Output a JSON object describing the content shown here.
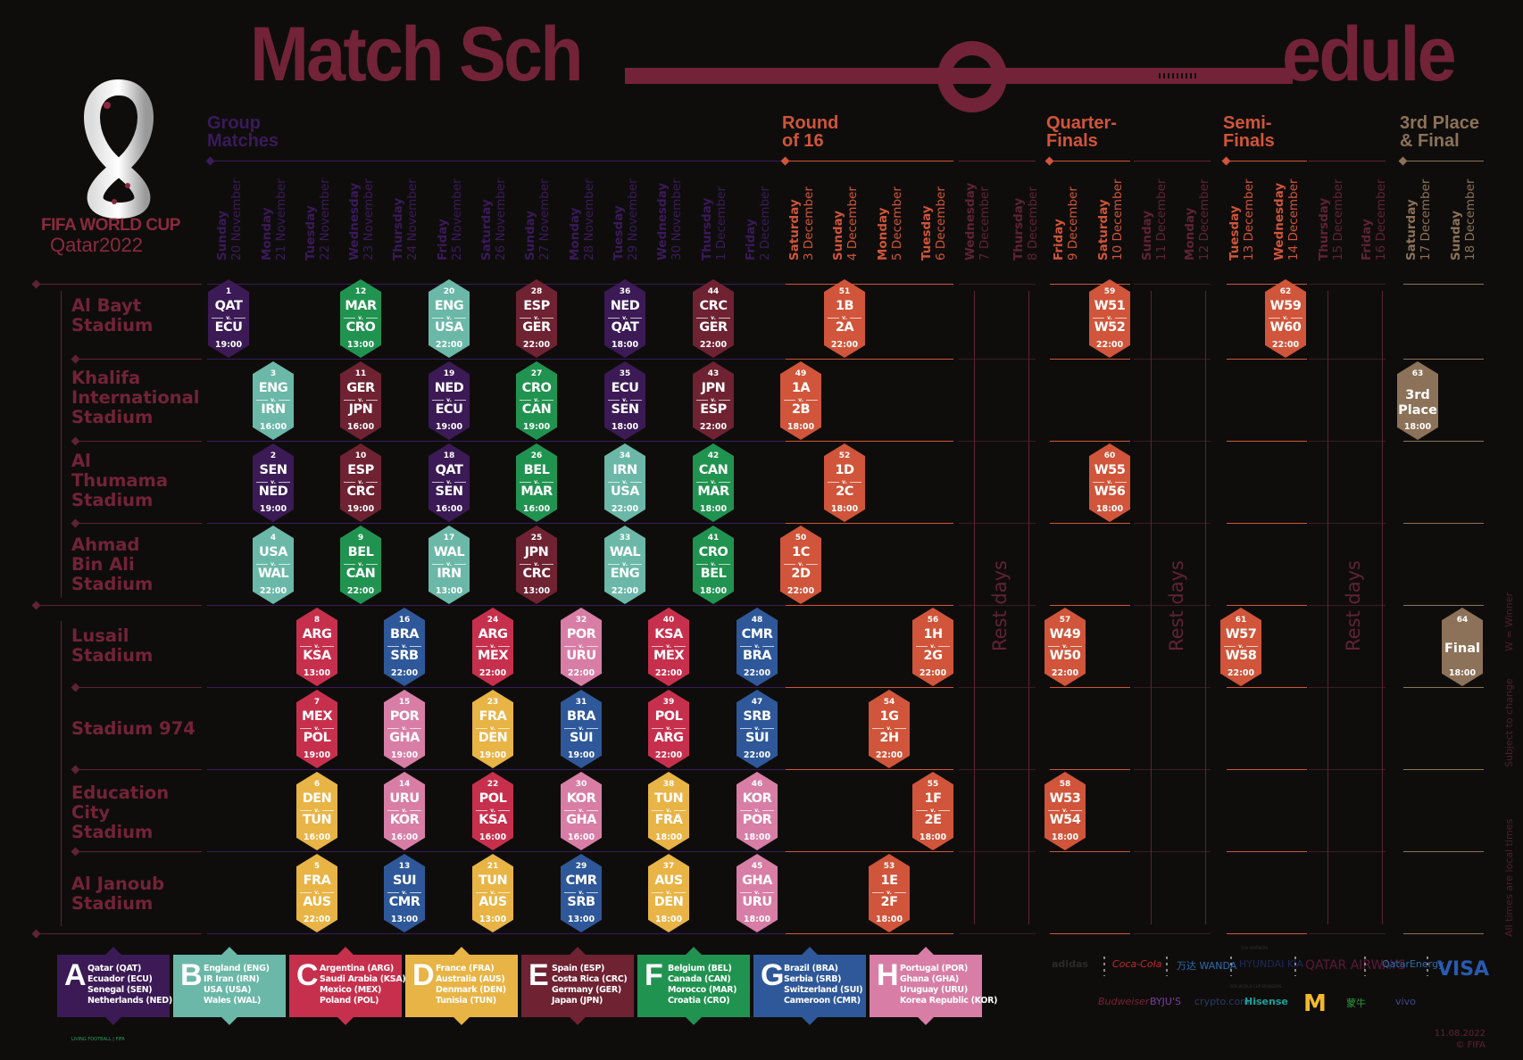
{
  "title": {
    "part1": "Match Sch",
    "part2": "edule"
  },
  "logo": {
    "line1": "FIFA WORLD CUP",
    "line2": "Qatar2022"
  },
  "colors": {
    "bg": "#0f0d0c",
    "title": "#722337",
    "group_stage": "#3a1a5a",
    "knockout": "#d0553a",
    "final": "#8c7258",
    "venue": "#722337",
    "group_A": "#3b1a55",
    "group_B": "#6bb8a8",
    "group_C": "#c7304d",
    "group_D": "#e8b445",
    "group_E": "#6e2232",
    "group_F": "#219350",
    "group_G": "#2e5899",
    "group_H": "#d87ea6"
  },
  "stages": [
    {
      "label": "Group\nMatches",
      "color": "#3a1a5a"
    },
    {
      "label": "Round\nof 16",
      "color": "#d0553a"
    },
    {
      "label": "Quarter-\nFinals",
      "color": "#d0553a"
    },
    {
      "label": "Semi-\nFinals",
      "color": "#d0553a"
    },
    {
      "label": "3rd Place\n& Final",
      "color": "#8c7258"
    }
  ],
  "days": [
    {
      "weekday": "Sunday",
      "date": "20 November",
      "stage": "group"
    },
    {
      "weekday": "Monday",
      "date": "21 November",
      "stage": "group"
    },
    {
      "weekday": "Tuesday",
      "date": "22 November",
      "stage": "group"
    },
    {
      "weekday": "Wednesday",
      "date": "23 November",
      "stage": "group"
    },
    {
      "weekday": "Thursday",
      "date": "24 November",
      "stage": "group"
    },
    {
      "weekday": "Friday",
      "date": "25 November",
      "stage": "group"
    },
    {
      "weekday": "Saturday",
      "date": "26 November",
      "stage": "group"
    },
    {
      "weekday": "Sunday",
      "date": "27 November",
      "stage": "group"
    },
    {
      "weekday": "Monday",
      "date": "28 November",
      "stage": "group"
    },
    {
      "weekday": "Tuesday",
      "date": "29 November",
      "stage": "group"
    },
    {
      "weekday": "Wednesday",
      "date": "30 November",
      "stage": "group"
    },
    {
      "weekday": "Thursday",
      "date": "1 December",
      "stage": "group"
    },
    {
      "weekday": "Friday",
      "date": "2 December",
      "stage": "group"
    },
    {
      "weekday": "Saturday",
      "date": "3 December",
      "stage": "ko"
    },
    {
      "weekday": "Sunday",
      "date": "4 December",
      "stage": "ko"
    },
    {
      "weekday": "Monday",
      "date": "5 December",
      "stage": "ko"
    },
    {
      "weekday": "Tuesday",
      "date": "6 December",
      "stage": "ko"
    },
    {
      "weekday": "Wednesday",
      "date": "7 December",
      "stage": "rest"
    },
    {
      "weekday": "Thursday",
      "date": "8 December",
      "stage": "rest"
    },
    {
      "weekday": "Friday",
      "date": "9 December",
      "stage": "ko"
    },
    {
      "weekday": "Saturday",
      "date": "10 December",
      "stage": "ko"
    },
    {
      "weekday": "Sunday",
      "date": "11 December",
      "stage": "rest"
    },
    {
      "weekday": "Monday",
      "date": "12 December",
      "stage": "rest"
    },
    {
      "weekday": "Tuesday",
      "date": "13 December",
      "stage": "ko"
    },
    {
      "weekday": "Wednesday",
      "date": "14 December",
      "stage": "ko"
    },
    {
      "weekday": "Thursday",
      "date": "15 December",
      "stage": "rest"
    },
    {
      "weekday": "Friday",
      "date": "16 December",
      "stage": "rest"
    },
    {
      "weekday": "Saturday",
      "date": "17 December",
      "stage": "final"
    },
    {
      "weekday": "Sunday",
      "date": "18 December",
      "stage": "final"
    }
  ],
  "venues": [
    "Al Bayt\nStadium",
    "Khalifa\nInternational\nStadium",
    "Al\nThumama\nStadium",
    "Ahmad\nBin Ali\nStadium",
    "Lusail\nStadium",
    "Stadium 974",
    "Education\nCity\nStadium",
    "Al Janoub\nStadium"
  ],
  "rest_label": "Rest days",
  "versus": "v.",
  "matches": [
    {
      "no": "1",
      "home": "QAT",
      "away": "ECU",
      "time": "19:00",
      "venue": 0,
      "day": 0,
      "group": "A"
    },
    {
      "no": "2",
      "home": "SEN",
      "away": "NED",
      "time": "19:00",
      "venue": 2,
      "day": 1,
      "group": "A"
    },
    {
      "no": "3",
      "home": "ENG",
      "away": "IRN",
      "time": "16:00",
      "venue": 1,
      "day": 1,
      "group": "B"
    },
    {
      "no": "4",
      "home": "USA",
      "away": "WAL",
      "time": "22:00",
      "venue": 3,
      "day": 1,
      "group": "B"
    },
    {
      "no": "5",
      "home": "FRA",
      "away": "AUS",
      "time": "22:00",
      "venue": 7,
      "day": 2,
      "group": "D"
    },
    {
      "no": "6",
      "home": "DEN",
      "away": "TUN",
      "time": "16:00",
      "venue": 6,
      "day": 2,
      "group": "D"
    },
    {
      "no": "7",
      "home": "MEX",
      "away": "POL",
      "time": "19:00",
      "venue": 5,
      "day": 2,
      "group": "C"
    },
    {
      "no": "8",
      "home": "ARG",
      "away": "KSA",
      "time": "13:00",
      "venue": 4,
      "day": 2,
      "group": "C"
    },
    {
      "no": "9",
      "home": "BEL",
      "away": "CAN",
      "time": "22:00",
      "venue": 3,
      "day": 3,
      "group": "F"
    },
    {
      "no": "10",
      "home": "ESP",
      "away": "CRC",
      "time": "19:00",
      "venue": 2,
      "day": 3,
      "group": "E"
    },
    {
      "no": "11",
      "home": "GER",
      "away": "JPN",
      "time": "16:00",
      "venue": 1,
      "day": 3,
      "group": "E"
    },
    {
      "no": "12",
      "home": "MAR",
      "away": "CRO",
      "time": "13:00",
      "venue": 0,
      "day": 3,
      "group": "F"
    },
    {
      "no": "13",
      "home": "SUI",
      "away": "CMR",
      "time": "13:00",
      "venue": 7,
      "day": 4,
      "group": "G"
    },
    {
      "no": "14",
      "home": "URU",
      "away": "KOR",
      "time": "16:00",
      "venue": 6,
      "day": 4,
      "group": "H"
    },
    {
      "no": "15",
      "home": "POR",
      "away": "GHA",
      "time": "19:00",
      "venue": 5,
      "day": 4,
      "group": "H"
    },
    {
      "no": "16",
      "home": "BRA",
      "away": "SRB",
      "time": "22:00",
      "venue": 4,
      "day": 4,
      "group": "G"
    },
    {
      "no": "17",
      "home": "WAL",
      "away": "IRN",
      "time": "13:00",
      "venue": 3,
      "day": 5,
      "group": "B"
    },
    {
      "no": "18",
      "home": "QAT",
      "away": "SEN",
      "time": "16:00",
      "venue": 2,
      "day": 5,
      "group": "A"
    },
    {
      "no": "19",
      "home": "NED",
      "away": "ECU",
      "time": "19:00",
      "venue": 1,
      "day": 5,
      "group": "A"
    },
    {
      "no": "20",
      "home": "ENG",
      "away": "USA",
      "time": "22:00",
      "venue": 0,
      "day": 5,
      "group": "B"
    },
    {
      "no": "21",
      "home": "TUN",
      "away": "AUS",
      "time": "13:00",
      "venue": 7,
      "day": 6,
      "group": "D"
    },
    {
      "no": "22",
      "home": "POL",
      "away": "KSA",
      "time": "16:00",
      "venue": 6,
      "day": 6,
      "group": "C"
    },
    {
      "no": "23",
      "home": "FRA",
      "away": "DEN",
      "time": "19:00",
      "venue": 5,
      "day": 6,
      "group": "D"
    },
    {
      "no": "24",
      "home": "ARG",
      "away": "MEX",
      "time": "22:00",
      "venue": 4,
      "day": 6,
      "group": "C"
    },
    {
      "no": "25",
      "home": "JPN",
      "away": "CRC",
      "time": "13:00",
      "venue": 3,
      "day": 7,
      "group": "E"
    },
    {
      "no": "26",
      "home": "BEL",
      "away": "MAR",
      "time": "16:00",
      "venue": 2,
      "day": 7,
      "group": "F"
    },
    {
      "no": "27",
      "home": "CRO",
      "away": "CAN",
      "time": "19:00",
      "venue": 1,
      "day": 7,
      "group": "F"
    },
    {
      "no": "28",
      "home": "ESP",
      "away": "GER",
      "time": "22:00",
      "venue": 0,
      "day": 7,
      "group": "E"
    },
    {
      "no": "29",
      "home": "CMR",
      "away": "SRB",
      "time": "13:00",
      "venue": 7,
      "day": 8,
      "group": "G"
    },
    {
      "no": "30",
      "home": "KOR",
      "away": "GHA",
      "time": "16:00",
      "venue": 6,
      "day": 8,
      "group": "H"
    },
    {
      "no": "31",
      "home": "BRA",
      "away": "SUI",
      "time": "19:00",
      "venue": 5,
      "day": 8,
      "group": "G"
    },
    {
      "no": "32",
      "home": "POR",
      "away": "URU",
      "time": "22:00",
      "venue": 4,
      "day": 8,
      "group": "H"
    },
    {
      "no": "33",
      "home": "WAL",
      "away": "ENG",
      "time": "22:00",
      "venue": 3,
      "day": 9,
      "group": "B"
    },
    {
      "no": "34",
      "home": "IRN",
      "away": "USA",
      "time": "22:00",
      "venue": 2,
      "day": 9,
      "group": "B"
    },
    {
      "no": "35",
      "home": "ECU",
      "away": "SEN",
      "time": "18:00",
      "venue": 1,
      "day": 9,
      "group": "A"
    },
    {
      "no": "36",
      "home": "NED",
      "away": "QAT",
      "time": "18:00",
      "venue": 0,
      "day": 9,
      "group": "A"
    },
    {
      "no": "37",
      "home": "AUS",
      "away": "DEN",
      "time": "18:00",
      "venue": 7,
      "day": 10,
      "group": "D"
    },
    {
      "no": "38",
      "home": "TUN",
      "away": "FRA",
      "time": "18:00",
      "venue": 6,
      "day": 10,
      "group": "D"
    },
    {
      "no": "39",
      "home": "POL",
      "away": "ARG",
      "time": "22:00",
      "venue": 5,
      "day": 10,
      "group": "C"
    },
    {
      "no": "40",
      "home": "KSA",
      "away": "MEX",
      "time": "22:00",
      "venue": 4,
      "day": 10,
      "group": "C"
    },
    {
      "no": "41",
      "home": "CRO",
      "away": "BEL",
      "time": "18:00",
      "venue": 3,
      "day": 11,
      "group": "F"
    },
    {
      "no": "42",
      "home": "CAN",
      "away": "MAR",
      "time": "18:00",
      "venue": 2,
      "day": 11,
      "group": "F"
    },
    {
      "no": "43",
      "home": "JPN",
      "away": "ESP",
      "time": "22:00",
      "venue": 1,
      "day": 11,
      "group": "E"
    },
    {
      "no": "44",
      "home": "CRC",
      "away": "GER",
      "time": "22:00",
      "venue": 0,
      "day": 11,
      "group": "E"
    },
    {
      "no": "45",
      "home": "GHA",
      "away": "URU",
      "time": "18:00",
      "venue": 7,
      "day": 12,
      "group": "H"
    },
    {
      "no": "46",
      "home": "KOR",
      "away": "POR",
      "time": "18:00",
      "venue": 6,
      "day": 12,
      "group": "H"
    },
    {
      "no": "47",
      "home": "SRB",
      "away": "SUI",
      "time": "22:00",
      "venue": 5,
      "day": 12,
      "group": "G"
    },
    {
      "no": "48",
      "home": "CMR",
      "away": "BRA",
      "time": "22:00",
      "venue": 4,
      "day": 12,
      "group": "G"
    },
    {
      "no": "49",
      "home": "1A",
      "away": "2B",
      "time": "18:00",
      "venue": 1,
      "day": 13,
      "group": "KO"
    },
    {
      "no": "50",
      "home": "1C",
      "away": "2D",
      "time": "22:00",
      "venue": 3,
      "day": 13,
      "group": "KO"
    },
    {
      "no": "51",
      "home": "1B",
      "away": "2A",
      "time": "22:00",
      "venue": 0,
      "day": 14,
      "group": "KO"
    },
    {
      "no": "52",
      "home": "1D",
      "away": "2C",
      "time": "18:00",
      "venue": 2,
      "day": 14,
      "group": "KO"
    },
    {
      "no": "53",
      "home": "1E",
      "away": "2F",
      "time": "18:00",
      "venue": 7,
      "day": 15,
      "group": "KO"
    },
    {
      "no": "54",
      "home": "1G",
      "away": "2H",
      "time": "22:00",
      "venue": 5,
      "day": 15,
      "group": "KO"
    },
    {
      "no": "55",
      "home": "1F",
      "away": "2E",
      "time": "18:00",
      "venue": 6,
      "day": 16,
      "group": "KO"
    },
    {
      "no": "56",
      "home": "1H",
      "away": "2G",
      "time": "22:00",
      "venue": 4,
      "day": 16,
      "group": "KO"
    },
    {
      "no": "57",
      "home": "W49",
      "away": "W50",
      "time": "22:00",
      "venue": 4,
      "day": 19,
      "group": "KO"
    },
    {
      "no": "58",
      "home": "W53",
      "away": "W54",
      "time": "18:00",
      "venue": 6,
      "day": 19,
      "group": "KO"
    },
    {
      "no": "59",
      "home": "W51",
      "away": "W52",
      "time": "22:00",
      "venue": 0,
      "day": 20,
      "group": "KO"
    },
    {
      "no": "60",
      "home": "W55",
      "away": "W56",
      "time": "18:00",
      "venue": 2,
      "day": 20,
      "group": "KO"
    },
    {
      "no": "61",
      "home": "W57",
      "away": "W58",
      "time": "22:00",
      "venue": 4,
      "day": 23,
      "group": "KO"
    },
    {
      "no": "62",
      "home": "W59",
      "away": "W60",
      "time": "22:00",
      "venue": 0,
      "day": 24,
      "group": "KO"
    },
    {
      "no": "63",
      "label": "3rd\nPlace",
      "time": "18:00",
      "venue": 1,
      "day": 27,
      "group": "FIN"
    },
    {
      "no": "64",
      "label": "Final",
      "time": "18:00",
      "venue": 4,
      "day": 28,
      "group": "FIN"
    }
  ],
  "groups": [
    {
      "letter": "A",
      "teams": [
        "Qatar (QAT)",
        "Ecuador (ECU)",
        "Senegal (SEN)",
        "Netherlands (NED)"
      ]
    },
    {
      "letter": "B",
      "teams": [
        "England (ENG)",
        "IR Iran (IRN)",
        "USA (USA)",
        "Wales (WAL)"
      ]
    },
    {
      "letter": "C",
      "teams": [
        "Argentina (ARG)",
        "Saudi Arabia (KSA)",
        "Mexico (MEX)",
        "Poland (POL)"
      ]
    },
    {
      "letter": "D",
      "teams": [
        "France (FRA)",
        "Australia (AUS)",
        "Denmark (DEN)",
        "Tunisia (TUN)"
      ]
    },
    {
      "letter": "E",
      "teams": [
        "Spain (ESP)",
        "Costa Rica (CRC)",
        "Germany (GER)",
        "Japan (JPN)"
      ]
    },
    {
      "letter": "F",
      "teams": [
        "Belgium (BEL)",
        "Canada (CAN)",
        "Morocco (MAR)",
        "Croatia (CRO)"
      ]
    },
    {
      "letter": "G",
      "teams": [
        "Brazil (BRA)",
        "Serbia (SRB)",
        "Switzerland (SUI)",
        "Cameroon (CMR)"
      ]
    },
    {
      "letter": "H",
      "teams": [
        "Portugal (POR)",
        "Ghana (GHA)",
        "Uruguay (URU)",
        "Korea Republic (KOR)"
      ]
    }
  ],
  "side_notes": [
    "W = Winner",
    "Subject to change",
    "All times are local times"
  ],
  "sponsors": {
    "partners_label": "FIFA PARTNERS",
    "partners": [
      "adidas",
      "Coca-Cola",
      "万达 WANDA",
      "HYUNDAI KIA",
      "QATAR AIRWAYS",
      "QatarEnergy",
      "VISA"
    ],
    "sponsors_label": "FIFA WORLD CUP SPONSORS",
    "sponsors": [
      "Budweiser",
      "BYJU'S",
      "crypto.com",
      "Hisense",
      "M",
      "蒙牛",
      "vivo"
    ]
  },
  "footer": {
    "date": "11.08.2022",
    "copyright": "© FIFA",
    "brand": "LIVING FOOTBALL | FIFA"
  }
}
